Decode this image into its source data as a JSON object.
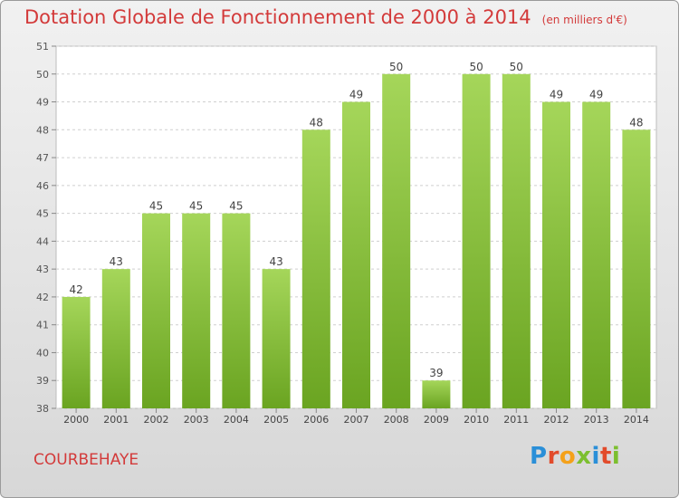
{
  "title": "Dotation Globale de Fonctionnement de 2000 à 2014",
  "subtitle": "(en milliers d'€)",
  "commune": "COURBEHAYE",
  "logo": "Proxiti",
  "colors": {
    "title": "#d33a3a",
    "bar_light": "#a5d65a",
    "bar_dark": "#6aa421",
    "grid": "#cfcfcf"
  },
  "chart_data": {
    "type": "bar",
    "categories": [
      "2000",
      "2001",
      "2002",
      "2003",
      "2004",
      "2005",
      "2006",
      "2007",
      "2008",
      "2009",
      "2010",
      "2011",
      "2012",
      "2013",
      "2014"
    ],
    "values": [
      42,
      43,
      45,
      45,
      45,
      43,
      48,
      49,
      50,
      39,
      50,
      50,
      49,
      49,
      48
    ],
    "data_labels": [
      "42",
      "43",
      "45",
      "45",
      "45",
      "43",
      "48",
      "49",
      "50",
      "39",
      "50",
      "50",
      "49",
      "49",
      "48"
    ],
    "y_ticks": [
      "38",
      "39",
      "40",
      "41",
      "42",
      "43",
      "44",
      "45",
      "46",
      "47",
      "48",
      "49",
      "50",
      "51"
    ],
    "ylim": [
      38,
      51
    ],
    "xlabel": "",
    "ylabel": "",
    "grid": true
  }
}
